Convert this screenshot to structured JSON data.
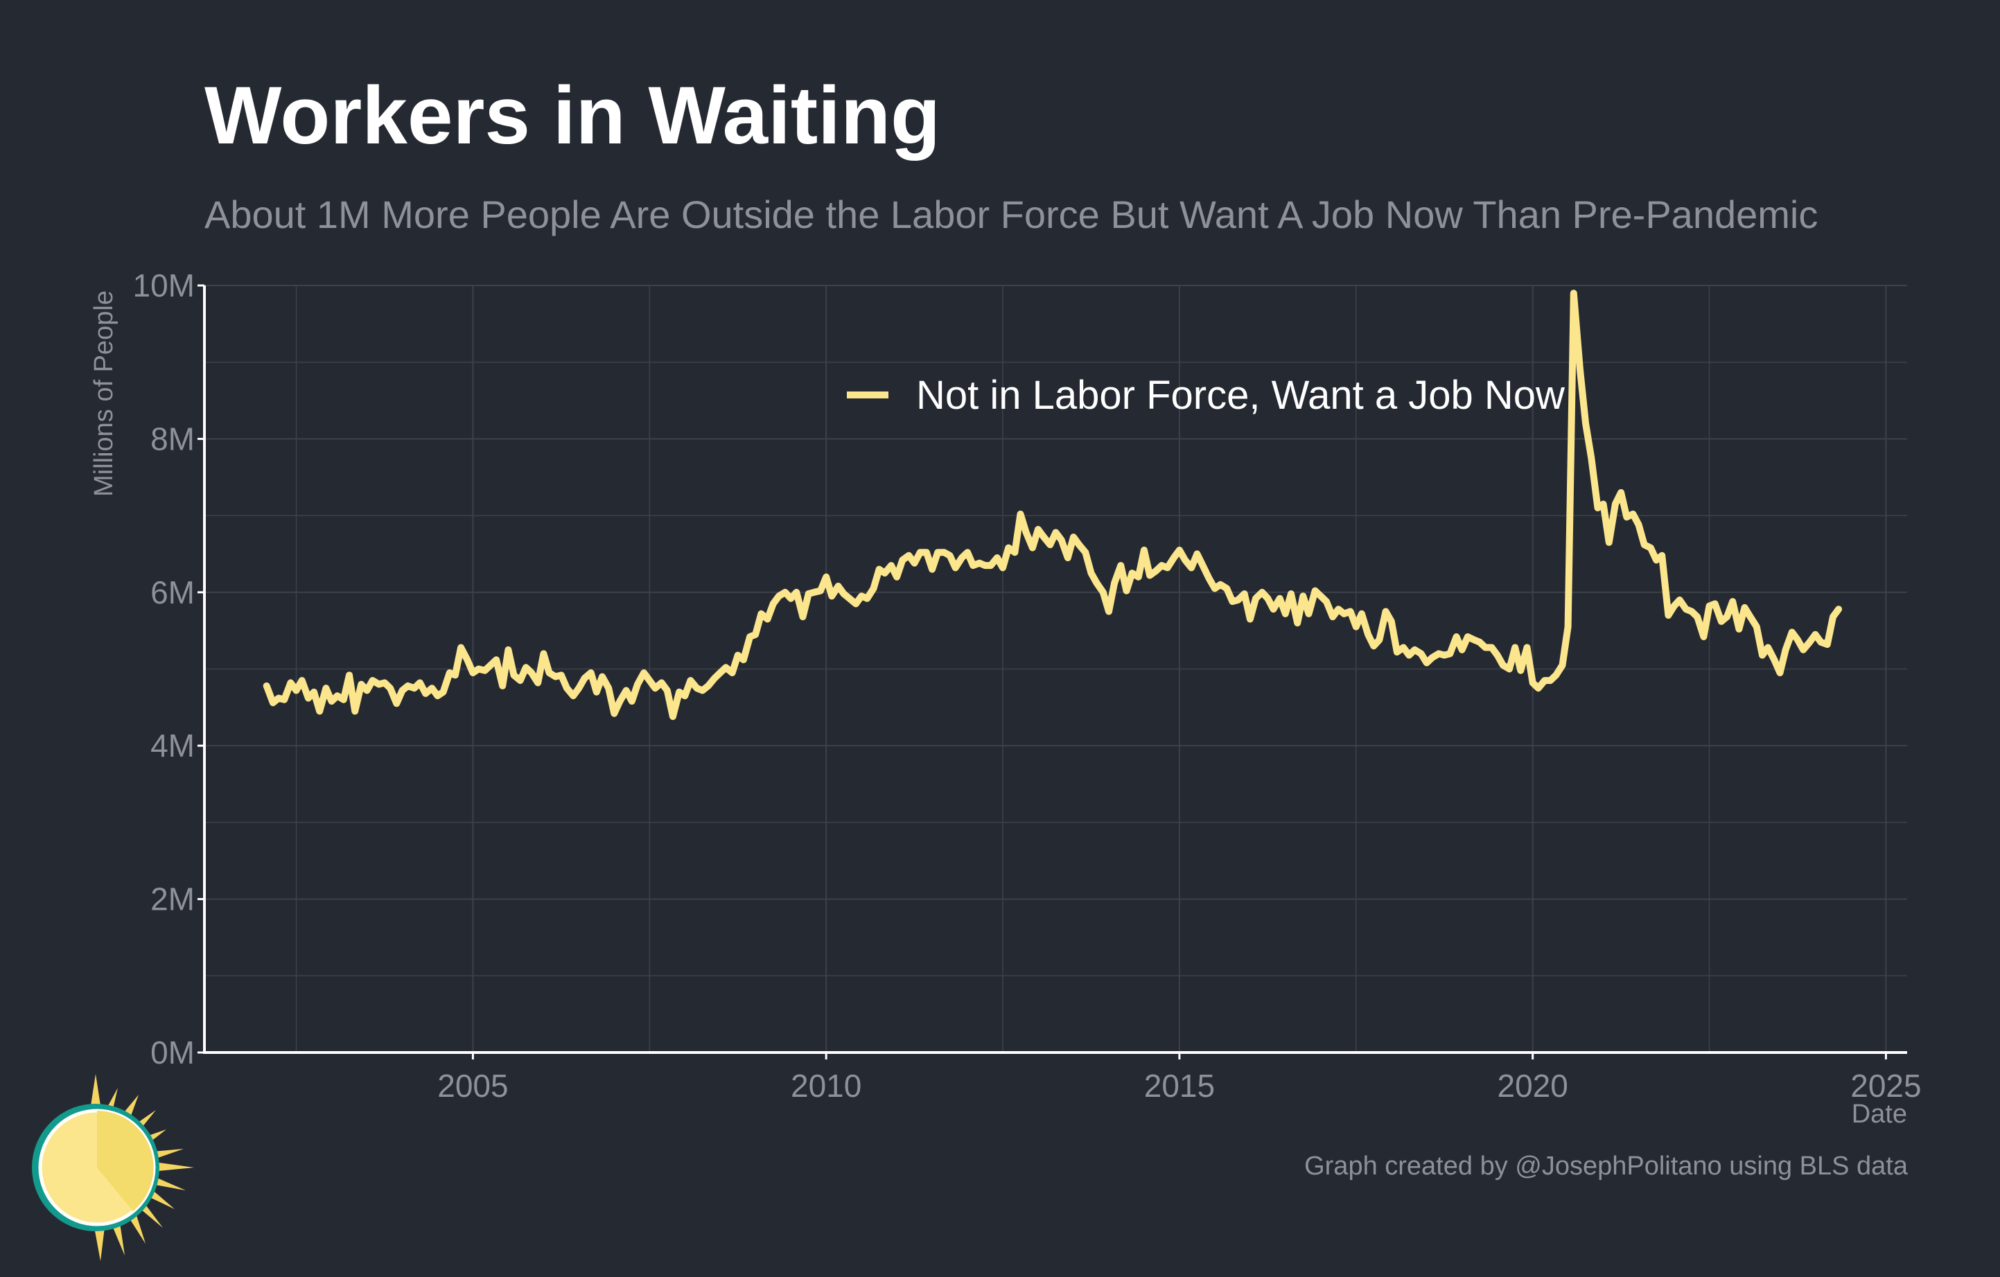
{
  "header": {
    "title": "Workers in Waiting",
    "subtitle": "About 1M More People Are Outside the Labor Force But Want A Job Now Than Pre-Pandemic"
  },
  "footer": {
    "caption": "Graph created by @JosephPolitano using BLS data",
    "logo_icon": "sun-logo-icon"
  },
  "colors": {
    "background": "#252932",
    "series": "#FBE68D",
    "grid": "#3d414a",
    "axis": "#ffffff",
    "muted_text": "#8e9198"
  },
  "chart_data": {
    "type": "line",
    "title": "Workers in Waiting",
    "subtitle": "About 1M More People Are Outside the Labor Force But Want A Job Now Than Pre-Pandemic",
    "xlabel": "Date",
    "ylabel": "Millions of People",
    "xlim": [
      2001.2,
      2025.3
    ],
    "ylim": [
      0,
      10
    ],
    "x_ticks": [
      2005,
      2010,
      2015,
      2020,
      2025
    ],
    "x_tick_labels": [
      "2005",
      "2010",
      "2015",
      "2020",
      "2025"
    ],
    "y_ticks": [
      0,
      2,
      4,
      6,
      8,
      10
    ],
    "y_tick_labels": [
      "0M",
      "2M",
      "4M",
      "6M",
      "8M",
      "10M"
    ],
    "grid": true,
    "legend_position": "top-center",
    "series": [
      {
        "name": "Not in Labor Force, Want a Job Now",
        "color": "#FBE68D",
        "points": [
          [
            2002.08,
            4.78
          ],
          [
            2002.17,
            4.56
          ],
          [
            2002.25,
            4.62
          ],
          [
            2002.33,
            4.6
          ],
          [
            2002.42,
            4.82
          ],
          [
            2002.5,
            4.72
          ],
          [
            2002.58,
            4.85
          ],
          [
            2002.67,
            4.62
          ],
          [
            2002.75,
            4.7
          ],
          [
            2002.83,
            4.45
          ],
          [
            2002.92,
            4.75
          ],
          [
            2003.0,
            4.58
          ],
          [
            2003.08,
            4.65
          ],
          [
            2003.17,
            4.6
          ],
          [
            2003.25,
            4.92
          ],
          [
            2003.33,
            4.45
          ],
          [
            2003.42,
            4.8
          ],
          [
            2003.5,
            4.72
          ],
          [
            2003.58,
            4.85
          ],
          [
            2003.67,
            4.8
          ],
          [
            2003.75,
            4.82
          ],
          [
            2003.83,
            4.75
          ],
          [
            2003.92,
            4.55
          ],
          [
            2004.0,
            4.72
          ],
          [
            2004.08,
            4.78
          ],
          [
            2004.17,
            4.75
          ],
          [
            2004.25,
            4.82
          ],
          [
            2004.33,
            4.68
          ],
          [
            2004.42,
            4.75
          ],
          [
            2004.5,
            4.65
          ],
          [
            2004.58,
            4.7
          ],
          [
            2004.67,
            4.95
          ],
          [
            2004.75,
            4.92
          ],
          [
            2004.83,
            5.28
          ],
          [
            2004.92,
            5.12
          ],
          [
            2005.0,
            4.95
          ],
          [
            2005.08,
            5.0
          ],
          [
            2005.17,
            4.98
          ],
          [
            2005.25,
            5.05
          ],
          [
            2005.33,
            5.12
          ],
          [
            2005.42,
            4.78
          ],
          [
            2005.5,
            5.25
          ],
          [
            2005.58,
            4.92
          ],
          [
            2005.67,
            4.85
          ],
          [
            2005.75,
            5.02
          ],
          [
            2005.83,
            4.95
          ],
          [
            2005.92,
            4.82
          ],
          [
            2006.0,
            5.2
          ],
          [
            2006.08,
            4.95
          ],
          [
            2006.17,
            4.9
          ],
          [
            2006.25,
            4.92
          ],
          [
            2006.33,
            4.75
          ],
          [
            2006.42,
            4.65
          ],
          [
            2006.5,
            4.75
          ],
          [
            2006.58,
            4.88
          ],
          [
            2006.67,
            4.95
          ],
          [
            2006.75,
            4.7
          ],
          [
            2006.83,
            4.9
          ],
          [
            2006.92,
            4.75
          ],
          [
            2007.0,
            4.42
          ],
          [
            2007.08,
            4.58
          ],
          [
            2007.17,
            4.72
          ],
          [
            2007.25,
            4.58
          ],
          [
            2007.33,
            4.8
          ],
          [
            2007.42,
            4.95
          ],
          [
            2007.5,
            4.85
          ],
          [
            2007.58,
            4.75
          ],
          [
            2007.67,
            4.82
          ],
          [
            2007.75,
            4.72
          ],
          [
            2007.83,
            4.38
          ],
          [
            2007.92,
            4.7
          ],
          [
            2008.0,
            4.65
          ],
          [
            2008.08,
            4.85
          ],
          [
            2008.17,
            4.75
          ],
          [
            2008.25,
            4.72
          ],
          [
            2008.33,
            4.78
          ],
          [
            2008.42,
            4.88
          ],
          [
            2008.5,
            4.95
          ],
          [
            2008.58,
            5.02
          ],
          [
            2008.67,
            4.95
          ],
          [
            2008.75,
            5.18
          ],
          [
            2008.83,
            5.12
          ],
          [
            2008.92,
            5.42
          ],
          [
            2009.0,
            5.45
          ],
          [
            2009.08,
            5.72
          ],
          [
            2009.17,
            5.65
          ],
          [
            2009.25,
            5.85
          ],
          [
            2009.33,
            5.95
          ],
          [
            2009.42,
            6.0
          ],
          [
            2009.5,
            5.92
          ],
          [
            2009.58,
            6.0
          ],
          [
            2009.67,
            5.68
          ],
          [
            2009.75,
            5.98
          ],
          [
            2009.83,
            6.0
          ],
          [
            2009.92,
            6.02
          ],
          [
            2010.0,
            6.2
          ],
          [
            2010.08,
            5.95
          ],
          [
            2010.17,
            6.08
          ],
          [
            2010.25,
            5.98
          ],
          [
            2010.33,
            5.92
          ],
          [
            2010.42,
            5.85
          ],
          [
            2010.5,
            5.95
          ],
          [
            2010.58,
            5.92
          ],
          [
            2010.67,
            6.05
          ],
          [
            2010.75,
            6.3
          ],
          [
            2010.83,
            6.25
          ],
          [
            2010.92,
            6.35
          ],
          [
            2011.0,
            6.2
          ],
          [
            2011.08,
            6.42
          ],
          [
            2011.17,
            6.48
          ],
          [
            2011.25,
            6.38
          ],
          [
            2011.33,
            6.52
          ],
          [
            2011.42,
            6.52
          ],
          [
            2011.5,
            6.3
          ],
          [
            2011.58,
            6.52
          ],
          [
            2011.67,
            6.52
          ],
          [
            2011.75,
            6.48
          ],
          [
            2011.83,
            6.32
          ],
          [
            2011.92,
            6.45
          ],
          [
            2012.0,
            6.52
          ],
          [
            2012.08,
            6.35
          ],
          [
            2012.17,
            6.38
          ],
          [
            2012.25,
            6.35
          ],
          [
            2012.33,
            6.35
          ],
          [
            2012.42,
            6.45
          ],
          [
            2012.5,
            6.32
          ],
          [
            2012.58,
            6.58
          ],
          [
            2012.67,
            6.52
          ],
          [
            2012.75,
            7.02
          ],
          [
            2012.83,
            6.78
          ],
          [
            2012.92,
            6.58
          ],
          [
            2013.0,
            6.82
          ],
          [
            2013.08,
            6.72
          ],
          [
            2013.17,
            6.62
          ],
          [
            2013.25,
            6.78
          ],
          [
            2013.33,
            6.68
          ],
          [
            2013.42,
            6.45
          ],
          [
            2013.5,
            6.72
          ],
          [
            2013.58,
            6.62
          ],
          [
            2013.67,
            6.52
          ],
          [
            2013.75,
            6.25
          ],
          [
            2013.83,
            6.12
          ],
          [
            2013.92,
            6.0
          ],
          [
            2014.0,
            5.75
          ],
          [
            2014.08,
            6.12
          ],
          [
            2014.17,
            6.35
          ],
          [
            2014.25,
            6.02
          ],
          [
            2014.33,
            6.25
          ],
          [
            2014.42,
            6.2
          ],
          [
            2014.5,
            6.55
          ],
          [
            2014.58,
            6.22
          ],
          [
            2014.67,
            6.28
          ],
          [
            2014.75,
            6.35
          ],
          [
            2014.83,
            6.32
          ],
          [
            2014.92,
            6.45
          ],
          [
            2015.0,
            6.55
          ],
          [
            2015.08,
            6.42
          ],
          [
            2015.17,
            6.32
          ],
          [
            2015.25,
            6.5
          ],
          [
            2015.33,
            6.35
          ],
          [
            2015.42,
            6.18
          ],
          [
            2015.5,
            6.05
          ],
          [
            2015.58,
            6.1
          ],
          [
            2015.67,
            6.05
          ],
          [
            2015.75,
            5.88
          ],
          [
            2015.83,
            5.9
          ],
          [
            2015.92,
            5.98
          ],
          [
            2016.0,
            5.65
          ],
          [
            2016.08,
            5.92
          ],
          [
            2016.17,
            6.0
          ],
          [
            2016.25,
            5.92
          ],
          [
            2016.33,
            5.78
          ],
          [
            2016.42,
            5.92
          ],
          [
            2016.5,
            5.72
          ],
          [
            2016.58,
            5.98
          ],
          [
            2016.67,
            5.6
          ],
          [
            2016.75,
            5.95
          ],
          [
            2016.83,
            5.72
          ],
          [
            2016.92,
            6.02
          ],
          [
            2017.0,
            5.95
          ],
          [
            2017.08,
            5.88
          ],
          [
            2017.17,
            5.68
          ],
          [
            2017.25,
            5.78
          ],
          [
            2017.33,
            5.72
          ],
          [
            2017.42,
            5.75
          ],
          [
            2017.5,
            5.55
          ],
          [
            2017.58,
            5.72
          ],
          [
            2017.67,
            5.45
          ],
          [
            2017.75,
            5.3
          ],
          [
            2017.83,
            5.38
          ],
          [
            2017.92,
            5.75
          ],
          [
            2018.0,
            5.62
          ],
          [
            2018.08,
            5.22
          ],
          [
            2018.17,
            5.28
          ],
          [
            2018.25,
            5.18
          ],
          [
            2018.33,
            5.25
          ],
          [
            2018.42,
            5.2
          ],
          [
            2018.5,
            5.08
          ],
          [
            2018.58,
            5.15
          ],
          [
            2018.67,
            5.2
          ],
          [
            2018.75,
            5.18
          ],
          [
            2018.83,
            5.2
          ],
          [
            2018.92,
            5.42
          ],
          [
            2019.0,
            5.25
          ],
          [
            2019.08,
            5.42
          ],
          [
            2019.17,
            5.38
          ],
          [
            2019.25,
            5.35
          ],
          [
            2019.33,
            5.28
          ],
          [
            2019.42,
            5.28
          ],
          [
            2019.5,
            5.18
          ],
          [
            2019.58,
            5.05
          ],
          [
            2019.67,
            5.0
          ],
          [
            2019.75,
            5.28
          ],
          [
            2019.83,
            4.98
          ],
          [
            2019.92,
            5.28
          ],
          [
            2020.0,
            4.82
          ],
          [
            2020.08,
            4.75
          ],
          [
            2020.17,
            4.85
          ],
          [
            2020.25,
            4.85
          ],
          [
            2020.33,
            4.92
          ],
          [
            2020.42,
            5.05
          ],
          [
            2020.5,
            5.55
          ],
          [
            2020.58,
            9.9
          ],
          [
            2020.67,
            8.9
          ],
          [
            2020.75,
            8.2
          ],
          [
            2020.83,
            7.75
          ],
          [
            2020.92,
            7.1
          ],
          [
            2021.0,
            7.15
          ],
          [
            2021.08,
            6.65
          ],
          [
            2021.17,
            7.15
          ],
          [
            2021.25,
            7.3
          ],
          [
            2021.33,
            6.98
          ],
          [
            2021.42,
            7.02
          ],
          [
            2021.5,
            6.88
          ],
          [
            2021.58,
            6.62
          ],
          [
            2021.67,
            6.58
          ],
          [
            2021.75,
            6.42
          ],
          [
            2021.83,
            6.48
          ],
          [
            2021.92,
            5.7
          ],
          [
            2022.0,
            5.82
          ],
          [
            2022.08,
            5.9
          ],
          [
            2022.17,
            5.78
          ],
          [
            2022.25,
            5.75
          ],
          [
            2022.33,
            5.68
          ],
          [
            2022.42,
            5.42
          ],
          [
            2022.5,
            5.82
          ],
          [
            2022.58,
            5.85
          ],
          [
            2022.67,
            5.62
          ],
          [
            2022.75,
            5.68
          ],
          [
            2022.83,
            5.88
          ],
          [
            2022.92,
            5.52
          ],
          [
            2023.0,
            5.8
          ],
          [
            2023.08,
            5.68
          ],
          [
            2023.17,
            5.55
          ],
          [
            2023.25,
            5.18
          ],
          [
            2023.33,
            5.28
          ],
          [
            2023.42,
            5.12
          ],
          [
            2023.5,
            4.95
          ],
          [
            2023.58,
            5.25
          ],
          [
            2023.67,
            5.48
          ],
          [
            2023.75,
            5.38
          ],
          [
            2023.83,
            5.25
          ],
          [
            2023.92,
            5.35
          ],
          [
            2024.0,
            5.45
          ],
          [
            2024.08,
            5.35
          ],
          [
            2024.17,
            5.32
          ],
          [
            2024.25,
            5.68
          ],
          [
            2024.33,
            5.78
          ]
        ]
      }
    ]
  }
}
